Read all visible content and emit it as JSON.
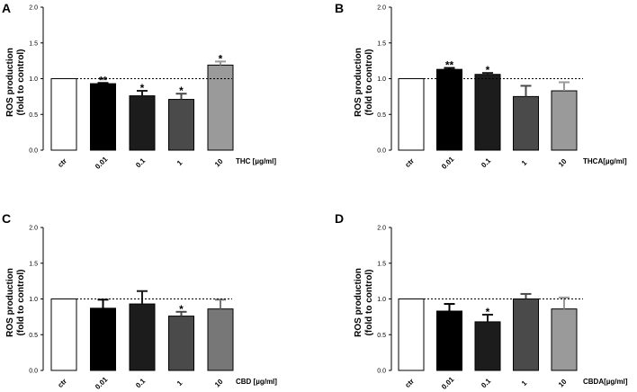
{
  "chart_data": [
    {
      "type": "bar",
      "panel": "A",
      "categories": [
        "ctr",
        "0.01",
        "0.1",
        "1",
        "10"
      ],
      "values": [
        1.0,
        0.93,
        0.76,
        0.71,
        1.19
      ],
      "errors": [
        0,
        0.01,
        0.07,
        0.08,
        0.05
      ],
      "significance": [
        "",
        "**",
        "*",
        "*",
        "*"
      ],
      "fills": [
        "#ffffff",
        "#000000",
        "#1c1c1c",
        "#4a4a4a",
        "#9a9a9a"
      ],
      "xlabel": "THC [µg/ml]",
      "ylabel": [
        "ROS production",
        "(fold to control)"
      ],
      "ylim": [
        0,
        2.0
      ],
      "yticks": [
        "0.0",
        "0.5",
        "1.0",
        "1.5",
        "2.0"
      ],
      "reference_line": 1.0
    },
    {
      "type": "bar",
      "panel": "B",
      "categories": [
        "ctr",
        "0.01",
        "0.1",
        "1",
        "10"
      ],
      "values": [
        1.0,
        1.13,
        1.06,
        0.75,
        0.83
      ],
      "errors": [
        0,
        0.02,
        0.02,
        0.15,
        0.12
      ],
      "significance": [
        "",
        "**",
        "*",
        "",
        ""
      ],
      "fills": [
        "#ffffff",
        "#000000",
        "#1c1c1c",
        "#4a4a4a",
        "#9a9a9a"
      ],
      "xlabel": "THCA[µg/ml]",
      "ylabel": [
        "ROS production",
        "(fold to control)"
      ],
      "ylim": [
        0,
        2.0
      ],
      "yticks": [
        "0.0",
        "0.5",
        "1.0",
        "1.5",
        "2.0"
      ],
      "reference_line": 1.0
    },
    {
      "type": "bar",
      "panel": "C",
      "categories": [
        "ctr",
        "0.01",
        "0.1",
        "1",
        "10"
      ],
      "values": [
        1.0,
        0.87,
        0.93,
        0.76,
        0.86
      ],
      "errors": [
        0,
        0.12,
        0.18,
        0.06,
        0.13
      ],
      "significance": [
        "",
        "",
        "",
        "*",
        ""
      ],
      "fills": [
        "#ffffff",
        "#000000",
        "#1c1c1c",
        "#4a4a4a",
        "#777777"
      ],
      "xlabel": "CBD [µg/ml]",
      "ylabel": [
        "ROS production",
        "(fold to control)"
      ],
      "ylim": [
        0,
        2.0
      ],
      "yticks": [
        "0.0",
        "0.5",
        "1.0",
        "1.5",
        "2.0"
      ],
      "reference_line": 1.0
    },
    {
      "type": "bar",
      "panel": "D",
      "categories": [
        "ctr",
        "0.01",
        "0.1",
        "1",
        "10"
      ],
      "values": [
        1.0,
        0.83,
        0.68,
        1.0,
        0.86
      ],
      "errors": [
        0,
        0.1,
        0.1,
        0.07,
        0.16
      ],
      "significance": [
        "",
        "",
        "*",
        "",
        ""
      ],
      "fills": [
        "#ffffff",
        "#000000",
        "#1c1c1c",
        "#4a4a4a",
        "#9a9a9a"
      ],
      "xlabel": "CBDA[µg/ml]",
      "ylabel": [
        "ROS production",
        "(fold to control)"
      ],
      "ylim": [
        0,
        2.0
      ],
      "yticks": [
        "0.0",
        "0.5",
        "1.0",
        "1.5",
        "2.0"
      ],
      "reference_line": 1.0
    }
  ]
}
